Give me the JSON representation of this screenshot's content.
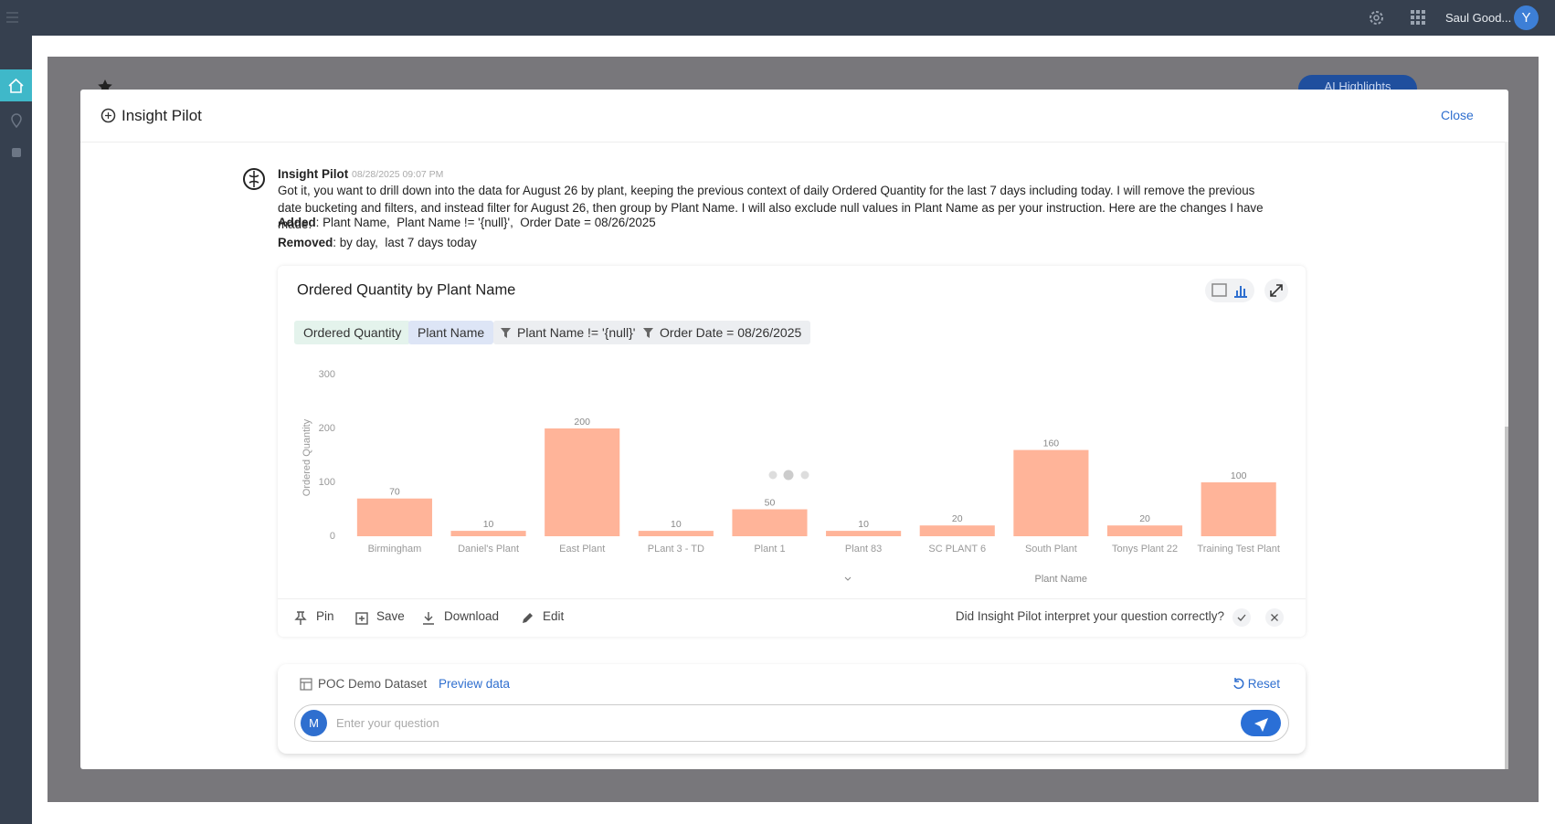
{
  "topbar": {
    "user": "Saul Good...",
    "avatar": "Y"
  },
  "background": {
    "ai_highlights": "AI Highlights"
  },
  "dialog": {
    "title": "Insight Pilot",
    "close": "Close"
  },
  "message": {
    "sender": "Insight Pilot",
    "timestamp": "08/28/2025 09:07 PM",
    "text": "Got it, you want to drill down into the data for August 26 by plant, keeping the previous context of daily Ordered Quantity for the last 7 days including today. I will remove the previous date bucketing and filters, and instead filter for August 26, then group by Plant Name. I will also exclude null values in Plant Name as per your instruction. Here are the changes I have made:",
    "added_label": "Added",
    "added": ": Plant Name,  Plant Name != '{null}',  Order Date = 08/26/2025",
    "removed_label": "Removed",
    "removed": ": by day,  last 7 days today"
  },
  "card": {
    "chips": [
      "Ordered Quantity",
      "Plant Name",
      "Plant Name != '{null}'",
      "Order Date = 08/26/2025"
    ],
    "actions": [
      "Pin",
      "Save",
      "Download",
      "Edit"
    ],
    "feedback": "Did Insight Pilot interpret your question correctly?"
  },
  "chart_data": {
    "type": "bar",
    "title": "Ordered Quantity by Plant Name",
    "categories": [
      "Birmingham",
      "Daniel's Plant",
      "East Plant",
      "PLant 3 - TD",
      "Plant 1",
      "Plant 83",
      "SC PLANT 6",
      "South Plant",
      "Tonys Plant 22",
      "Training Test Plant"
    ],
    "values": [
      70,
      10,
      200,
      10,
      50,
      10,
      20,
      160,
      20,
      100
    ],
    "color": "#ffb499",
    "ylim": [
      0,
      300
    ],
    "yticks": [
      0,
      100,
      200,
      300
    ],
    "x_label": "Plant Name",
    "y_label": "Ordered Quantity",
    "grid": false
  },
  "input": {
    "dataset": "POC Demo Dataset",
    "preview": "Preview data",
    "reset": "Reset",
    "avatar": "M",
    "placeholder": "Enter your question"
  }
}
